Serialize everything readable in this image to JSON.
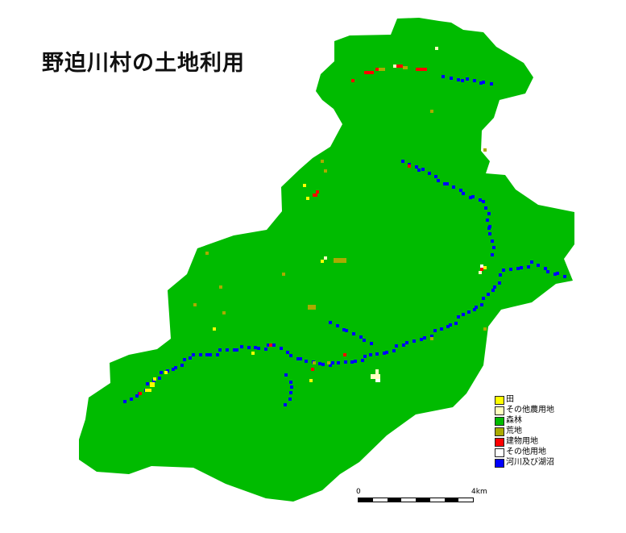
{
  "map": {
    "title": "野迫川村の土地利用",
    "colors": {
      "forest": "#00bb00",
      "paddy": "#ffff00",
      "other_farm": "#ffffc0",
      "wasteland": "#aaaa00",
      "building": "#ff0000",
      "other": "#ffffff",
      "water": "#0000ff",
      "border": "#222222"
    }
  },
  "legend": {
    "items": [
      {
        "label": "田",
        "color": "#ffff00"
      },
      {
        "label": "その他農用地",
        "color": "#ffffc0"
      },
      {
        "label": "森林",
        "color": "#00bb00"
      },
      {
        "label": "荒地",
        "color": "#aaaa00"
      },
      {
        "label": "建物用地",
        "color": "#ff0000"
      },
      {
        "label": "その他用地",
        "color": "#ffffff"
      },
      {
        "label": "河川及び湖沼",
        "color": "#0000ff"
      }
    ]
  },
  "scale": {
    "start_label": "0",
    "end_label": "4km",
    "segment_colors": [
      "#000000",
      "#ffffff",
      "#000000",
      "#ffffff",
      "#000000",
      "#ffffff",
      "#000000",
      "#ffffff"
    ]
  }
}
